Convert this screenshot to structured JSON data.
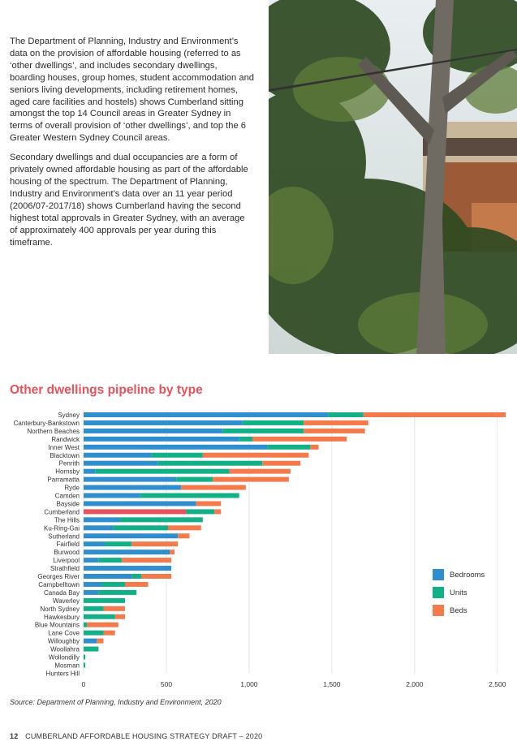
{
  "intro": {
    "paragraph1": "The Department of Planning, Industry and Environment’s data on the provision of affordable housing (referred to as ‘other dwellings’, and includes secondary dwellings, boarding houses, group homes, student accommodation and seniors living developments, including retirement homes, aged care facilities and hostels) shows Cumberland sitting amongst the top 14 Council areas in Greater Sydney in terms of overall provision of ‘other dwellings’, and top the 6 Greater Western Sydney Council areas.",
    "paragraph2": "Secondary dwellings and dual occupancies are a form of privately owned affordable housing as part of the affordable housing of the spectrum. The Department of Planning, Industry and Environment’s data over an 11 year period (2006/07-2017/18) shows Cumberland having the second highest total approvals in Greater Sydney, with an average of approximately 400 approvals per year during this timeframe."
  },
  "chart_title": "Other dwellings pipeline by type",
  "chart_data": {
    "type": "bar",
    "orientation": "horizontal",
    "stacked": true,
    "categories": [
      "Sydney",
      "Canterbury-Bankstown",
      "Northern Beaches",
      "Randwick",
      "Inner West",
      "Blacktown",
      "Penrith",
      "Hornsby",
      "Parramatta",
      "Ryde",
      "Camden",
      "Bayside",
      "Cumberland",
      "The Hills",
      "Ku-Ring-Gai",
      "Sutherland",
      "Fairfield",
      "Burwood",
      "Liverpool",
      "Strathfield",
      "Georges River",
      "Campbelltown",
      "Canada Bay",
      "Waverley",
      "North Sydney",
      "Hawkesbury",
      "Blue Mountains",
      "Lane Cove",
      "Willoughby",
      "Woollahra",
      "Wollondilly",
      "Mosman",
      "Hunters Hill"
    ],
    "series": [
      {
        "name": "Bedrooms",
        "color": "#2f8fce",
        "values": [
          1480,
          960,
          840,
          940,
          1110,
          410,
          450,
          70,
          560,
          590,
          340,
          680,
          620,
          220,
          180,
          570,
          130,
          520,
          90,
          530,
          290,
          110,
          90,
          0,
          0,
          0,
          0,
          0,
          80,
          0,
          0,
          0,
          0
        ]
      },
      {
        "name": "Units",
        "color": "#12b086",
        "values": [
          210,
          370,
          490,
          80,
          260,
          310,
          630,
          810,
          220,
          0,
          600,
          0,
          170,
          500,
          330,
          0,
          160,
          0,
          140,
          0,
          60,
          140,
          230,
          250,
          120,
          190,
          20,
          120,
          0,
          90,
          10,
          10,
          0
        ]
      },
      {
        "name": "Beds",
        "color": "#f47a4c",
        "values": [
          860,
          390,
          370,
          570,
          50,
          640,
          230,
          370,
          460,
          390,
          0,
          150,
          40,
          0,
          200,
          70,
          280,
          30,
          300,
          0,
          180,
          140,
          0,
          0,
          130,
          60,
          190,
          70,
          40,
          0,
          0,
          0,
          0
        ]
      }
    ],
    "highlight": {
      "category": "Cumberland",
      "color": "#e8525a"
    },
    "xlim": [
      0,
      2550
    ],
    "xticks": [
      "0",
      "500",
      "1,000",
      "1,500",
      "2,000",
      "2,500"
    ],
    "xtick_values": [
      0,
      500,
      1000,
      1500,
      2000,
      2500
    ],
    "grid": true,
    "legend_position": "right"
  },
  "source": "Source: Department of Planning, Industry and Environment, 2020",
  "footer": {
    "page_number": "12",
    "doc_title": "CUMBERLAND AFFORDABLE HOUSING STRATEGY DRAFT – 2020"
  }
}
